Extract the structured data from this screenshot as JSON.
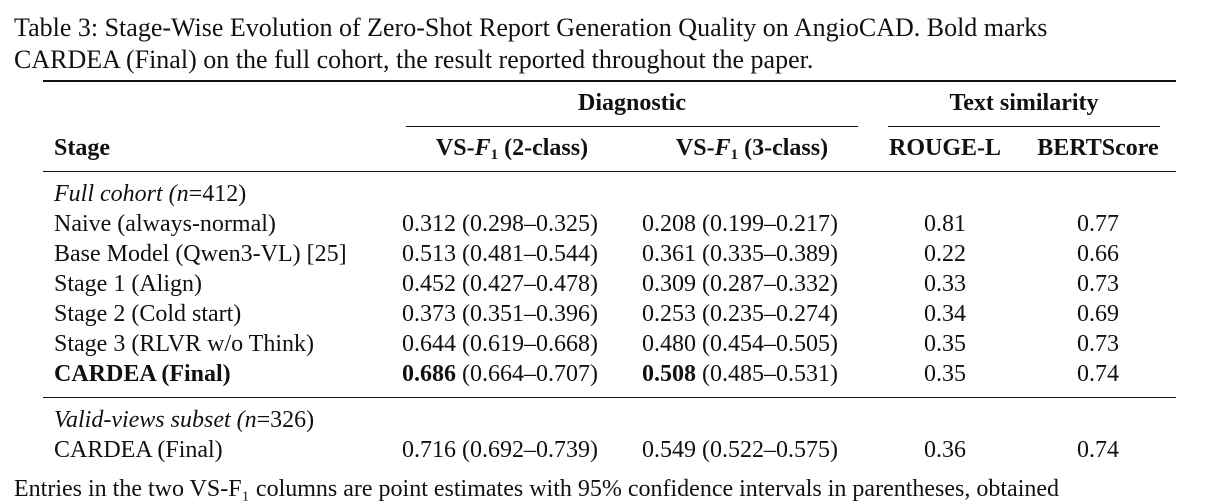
{
  "caption": "Table 3: Stage-Wise Evolution of Zero-Shot Report Generation Quality on AngioCAD. Bold marks\nCARDEA (Final) on the full cohort, the result reported throughout the paper.",
  "header": {
    "group_diagnostic": "Diagnostic",
    "group_text": "Text similarity",
    "col_stage": "Stage",
    "col_vs2_prefix": "VS-",
    "col_vs2_F": "F",
    "col_vs2_sub": "1",
    "col_vs2_suffix": " (2-class)",
    "col_vs3_prefix": "VS-",
    "col_vs3_F": "F",
    "col_vs3_sub": "1",
    "col_vs3_suffix": " (3-class)",
    "col_rouge": "ROUGE-L",
    "col_bert": "BERTScore"
  },
  "sections": [
    {
      "label_prefix": "Full cohort (",
      "label_n": "n",
      "label_suffix": "=412)",
      "rows": [
        {
          "stage": "Naive (always-normal)",
          "vs2_point": "0.312",
          "vs2_ci": " (0.298–0.325)",
          "vs3_point": "0.208",
          "vs3_ci": " (0.199–0.217)",
          "rouge": "0.81",
          "bert": "0.77",
          "bold": false
        },
        {
          "stage": "Base Model (Qwen3-VL) [25]",
          "vs2_point": "0.513",
          "vs2_ci": " (0.481–0.544)",
          "vs3_point": "0.361",
          "vs3_ci": " (0.335–0.389)",
          "rouge": "0.22",
          "bert": "0.66",
          "bold": false
        },
        {
          "stage": "Stage 1 (Align)",
          "vs2_point": "0.452",
          "vs2_ci": " (0.427–0.478)",
          "vs3_point": "0.309",
          "vs3_ci": " (0.287–0.332)",
          "rouge": "0.33",
          "bert": "0.73",
          "bold": false
        },
        {
          "stage": "Stage 2 (Cold start)",
          "vs2_point": "0.373",
          "vs2_ci": " (0.351–0.396)",
          "vs3_point": "0.253",
          "vs3_ci": " (0.235–0.274)",
          "rouge": "0.34",
          "bert": "0.69",
          "bold": false
        },
        {
          "stage": "Stage 3 (RLVR w/o Think)",
          "vs2_point": "0.644",
          "vs2_ci": " (0.619–0.668)",
          "vs3_point": "0.480",
          "vs3_ci": " (0.454–0.505)",
          "rouge": "0.35",
          "bert": "0.73",
          "bold": false
        },
        {
          "stage": "CARDEA (Final)",
          "vs2_point": "0.686",
          "vs2_ci": " (0.664–0.707)",
          "vs3_point": "0.508",
          "vs3_ci": " (0.485–0.531)",
          "rouge": "0.35",
          "bert": "0.74",
          "bold": true
        }
      ]
    },
    {
      "label_prefix": "Valid-views subset (",
      "label_n": "n",
      "label_suffix": "=326)",
      "rows": [
        {
          "stage": "CARDEA (Final)",
          "vs2_point": "0.716",
          "vs2_ci": " (0.692–0.739)",
          "vs3_point": "0.549",
          "vs3_ci": " (0.522–0.575)",
          "rouge": "0.36",
          "bert": "0.74",
          "bold": false
        }
      ]
    }
  ],
  "footnote": "Entries in the two VS-F₁ columns are point estimates with 95% confidence intervals in parentheses, obtained"
}
